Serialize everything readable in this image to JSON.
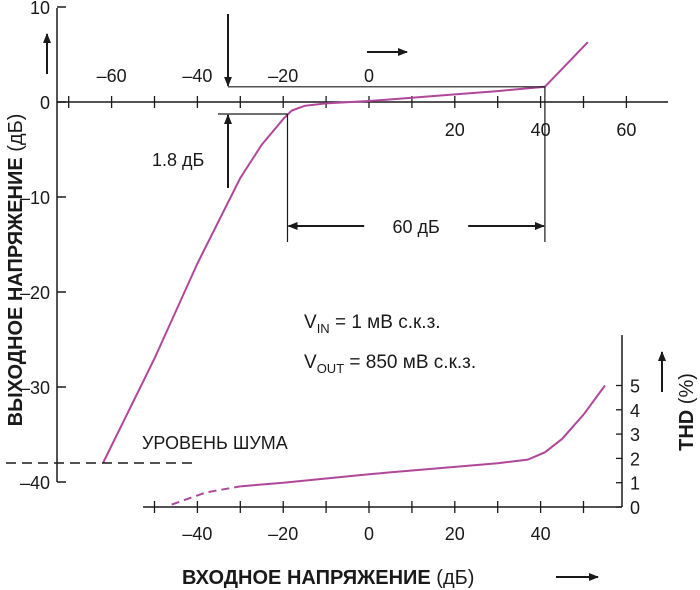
{
  "chart_data": {
    "type": "line",
    "y_axis_left": {
      "label": "ВЫХОДНОЕ НАПРЯЖЕНИЕ",
      "unit": "(дБ)",
      "ylim": [
        -44,
        10
      ],
      "ticks": [
        10,
        0,
        -10,
        -20,
        -30,
        -40
      ],
      "tick_labels": [
        "10",
        "0",
        "–10",
        "–20",
        "–30",
        "–40"
      ]
    },
    "x_axis_top": {
      "ticks": [
        -60,
        -40,
        -20,
        0
      ],
      "tick_labels": [
        "–60",
        "–40",
        "–20",
        "0"
      ]
    },
    "x_axis_zero": {
      "ticks": [
        20,
        40,
        60
      ],
      "tick_labels": [
        "20",
        "40",
        "60"
      ]
    },
    "x_axis_bottom": {
      "label": "ВХОДНОЕ НАПРЯЖЕНИЕ",
      "unit": "(дБ)",
      "xlim": [
        -52,
        62
      ],
      "ticks": [
        -40,
        -20,
        0,
        20,
        40
      ],
      "tick_labels": [
        "–40",
        "–20",
        "0",
        "20",
        "40"
      ]
    },
    "y_axis_right": {
      "label": "THD",
      "unit": "(%)",
      "ylim": [
        0,
        5.6
      ],
      "ticks": [
        0,
        1,
        2,
        3,
        4,
        5
      ],
      "tick_labels": [
        "0",
        "1",
        "2",
        "3",
        "4",
        "5"
      ]
    },
    "series": [
      {
        "color": "#b0479a",
        "axis": "output",
        "x": [
          -62,
          -50,
          -40,
          -30,
          -25,
          -20,
          -18,
          -15,
          -10,
          0,
          10,
          20,
          30,
          41,
          51
        ],
        "y": [
          -38,
          -27,
          -17,
          -8,
          -4.5,
          -1.8,
          -0.9,
          -0.4,
          -0.15,
          0.1,
          0.45,
          0.8,
          1.15,
          1.6,
          6.3
        ]
      },
      {
        "color": "#b0479a",
        "axis": "thd",
        "dashed_until": -30,
        "x": [
          -46,
          -38,
          -30,
          -20,
          0,
          20,
          30,
          37,
          41,
          45,
          50,
          55
        ],
        "y": [
          0.1,
          0.6,
          0.85,
          1.0,
          1.35,
          1.65,
          1.8,
          1.95,
          2.25,
          2.8,
          3.8,
          5.0
        ]
      }
    ],
    "annotations": {
      "noise_level": "УРОВЕНЬ ШУМА",
      "noise_level_db": -38,
      "compression": "1.8 дБ",
      "range": "60 дБ",
      "range_from_db": -19,
      "range_to_db": 41,
      "vin": {
        "main": "V",
        "sub": "IN",
        "rest": " = 1 мВ с.к.з."
      },
      "vout": {
        "main": "V",
        "sub": "OUT",
        "rest": " = 850 мВ с.к.з."
      }
    }
  }
}
